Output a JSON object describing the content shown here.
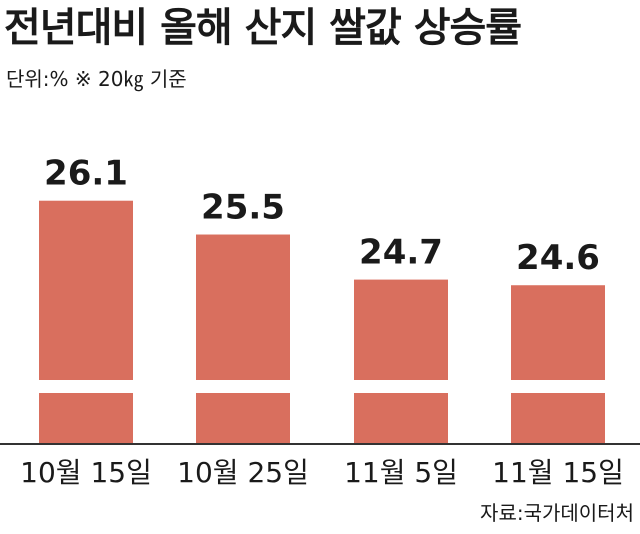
{
  "title": "전년대비 올해 산지 쌀값 상승률",
  "unit_note": "단위:% ※ 20㎏ 기준",
  "source": "자료:국가데이터처",
  "colors": {
    "bar": "#d96f5e",
    "axis": "#333333",
    "text": "#1a1a1a"
  },
  "chart_data": {
    "type": "bar",
    "title": "전년대비 올해 산지 쌀값 상승률",
    "categories": [
      "10월 15일",
      "10월 25일",
      "11월 5일",
      "11월 15일"
    ],
    "values": [
      26.1,
      25.5,
      24.7,
      24.6
    ],
    "data_labels": [
      "26.1",
      "25.5",
      "24.7",
      "24.6"
    ],
    "ylabel": "",
    "xlabel": "",
    "axis_break": true,
    "grid": false,
    "legend": "none"
  }
}
